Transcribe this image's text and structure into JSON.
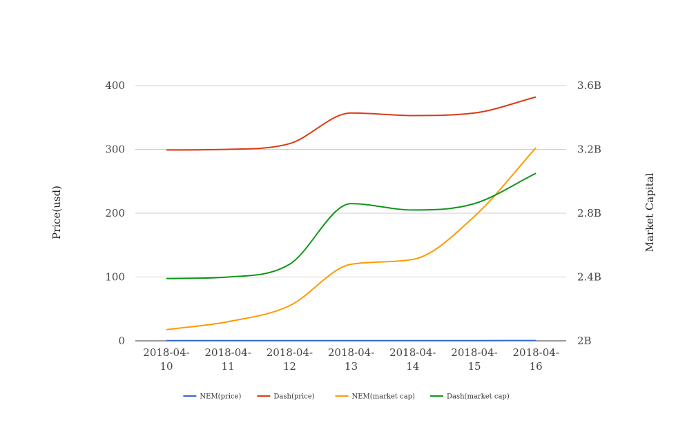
{
  "chart_data": {
    "type": "line",
    "title": "",
    "xlabel": "",
    "ylabel": "Price(usd)",
    "y2label": "Market Capital",
    "categories": [
      "2018-04-10",
      "2018-04-11",
      "2018-04-12",
      "2018-04-13",
      "2018-04-14",
      "2018-04-15",
      "2018-04-16"
    ],
    "x_tick_lines": [
      [
        "2018-04-",
        "10"
      ],
      [
        "2018-04-",
        "11"
      ],
      [
        "2018-04-",
        "12"
      ],
      [
        "2018-04-",
        "13"
      ],
      [
        "2018-04-",
        "14"
      ],
      [
        "2018-04-",
        "15"
      ],
      [
        "2018-04-",
        "16"
      ]
    ],
    "ylim": [
      0,
      400
    ],
    "y_ticks": [
      0,
      100,
      200,
      300,
      400
    ],
    "y_tick_labels": [
      "0",
      "100",
      "200",
      "300",
      "400"
    ],
    "y2lim": [
      2000000000,
      3600000000
    ],
    "y2_ticks": [
      2000000000,
      2400000000,
      2800000000,
      3200000000,
      3600000000
    ],
    "y2_tick_labels": [
      "2B",
      "2.4B",
      "2.8B",
      "3.2B",
      "3.6B"
    ],
    "grid": true,
    "legend_position": "bottom",
    "series": [
      {
        "name": "NEM(price)",
        "axis": "left",
        "color": "#3366cc",
        "values": [
          0.25,
          0.26,
          0.28,
          0.3,
          0.31,
          0.33,
          0.36
        ]
      },
      {
        "name": "Dash(price)",
        "axis": "left",
        "color": "#dc3912",
        "values": [
          299,
          300,
          309,
          357,
          353,
          357,
          382
        ]
      },
      {
        "name": "NEM(market cap)",
        "axis": "right",
        "color": "#ff9900",
        "values": [
          2070000000,
          2120000000,
          2220000000,
          2480000000,
          2510000000,
          2780000000,
          3210000000
        ]
      },
      {
        "name": "Dash(market cap)",
        "axis": "right",
        "color": "#109618",
        "values": [
          2390000000,
          2400000000,
          2480000000,
          2860000000,
          2820000000,
          2860000000,
          3050000000
        ]
      }
    ]
  }
}
